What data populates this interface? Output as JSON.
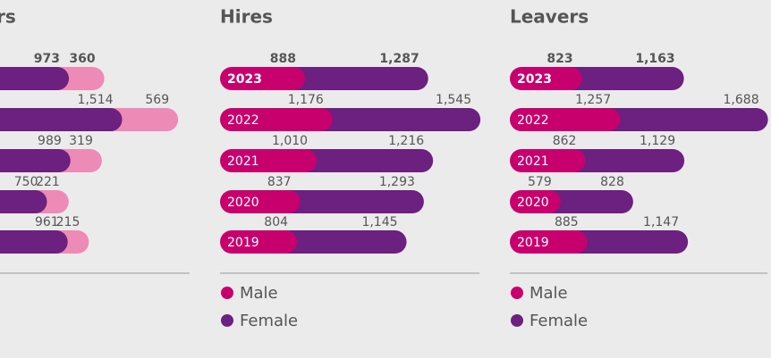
{
  "chart_data": [
    {
      "type": "bar",
      "title": "rs",
      "series": [
        {
          "color": "#6c2080",
          "values": [
            973,
            1514,
            989,
            750,
            961
          ],
          "value_labels": [
            "973",
            "1,514",
            "989",
            "750",
            "961"
          ]
        },
        {
          "color": "#ee8ab6",
          "values": [
            360,
            569,
            319,
            221,
            215
          ],
          "value_labels": [
            "360",
            "569",
            "319",
            "221",
            "215"
          ]
        }
      ]
    },
    {
      "type": "bar",
      "title": "Hires",
      "categories": [
        "2023",
        "2022",
        "2021",
        "2020",
        "2019"
      ],
      "series": [
        {
          "name": "Male",
          "color": "#c8006e",
          "values": [
            888,
            1176,
            1010,
            837,
            804
          ],
          "value_labels": [
            "888",
            "1,176",
            "1,010",
            "837",
            "804"
          ]
        },
        {
          "name": "Female",
          "color": "#6c2080",
          "values": [
            1287,
            1545,
            1216,
            1293,
            1145
          ],
          "value_labels": [
            "1,287",
            "1,545",
            "1,216",
            "1,293",
            "1,145"
          ]
        }
      ]
    },
    {
      "type": "bar",
      "title": "Leavers",
      "categories": [
        "2023",
        "2022",
        "2021",
        "2020",
        "2019"
      ],
      "series": [
        {
          "name": "Male",
          "color": "#c8006e",
          "values": [
            823,
            1257,
            862,
            579,
            885
          ],
          "value_labels": [
            "823",
            "1,257",
            "862",
            "579",
            "885"
          ]
        },
        {
          "name": "Female",
          "color": "#6c2080",
          "values": [
            1163,
            1688,
            1129,
            828,
            1147
          ],
          "value_labels": [
            "1,163",
            "1,688",
            "1,129",
            "828",
            "1,147"
          ]
        }
      ]
    }
  ]
}
